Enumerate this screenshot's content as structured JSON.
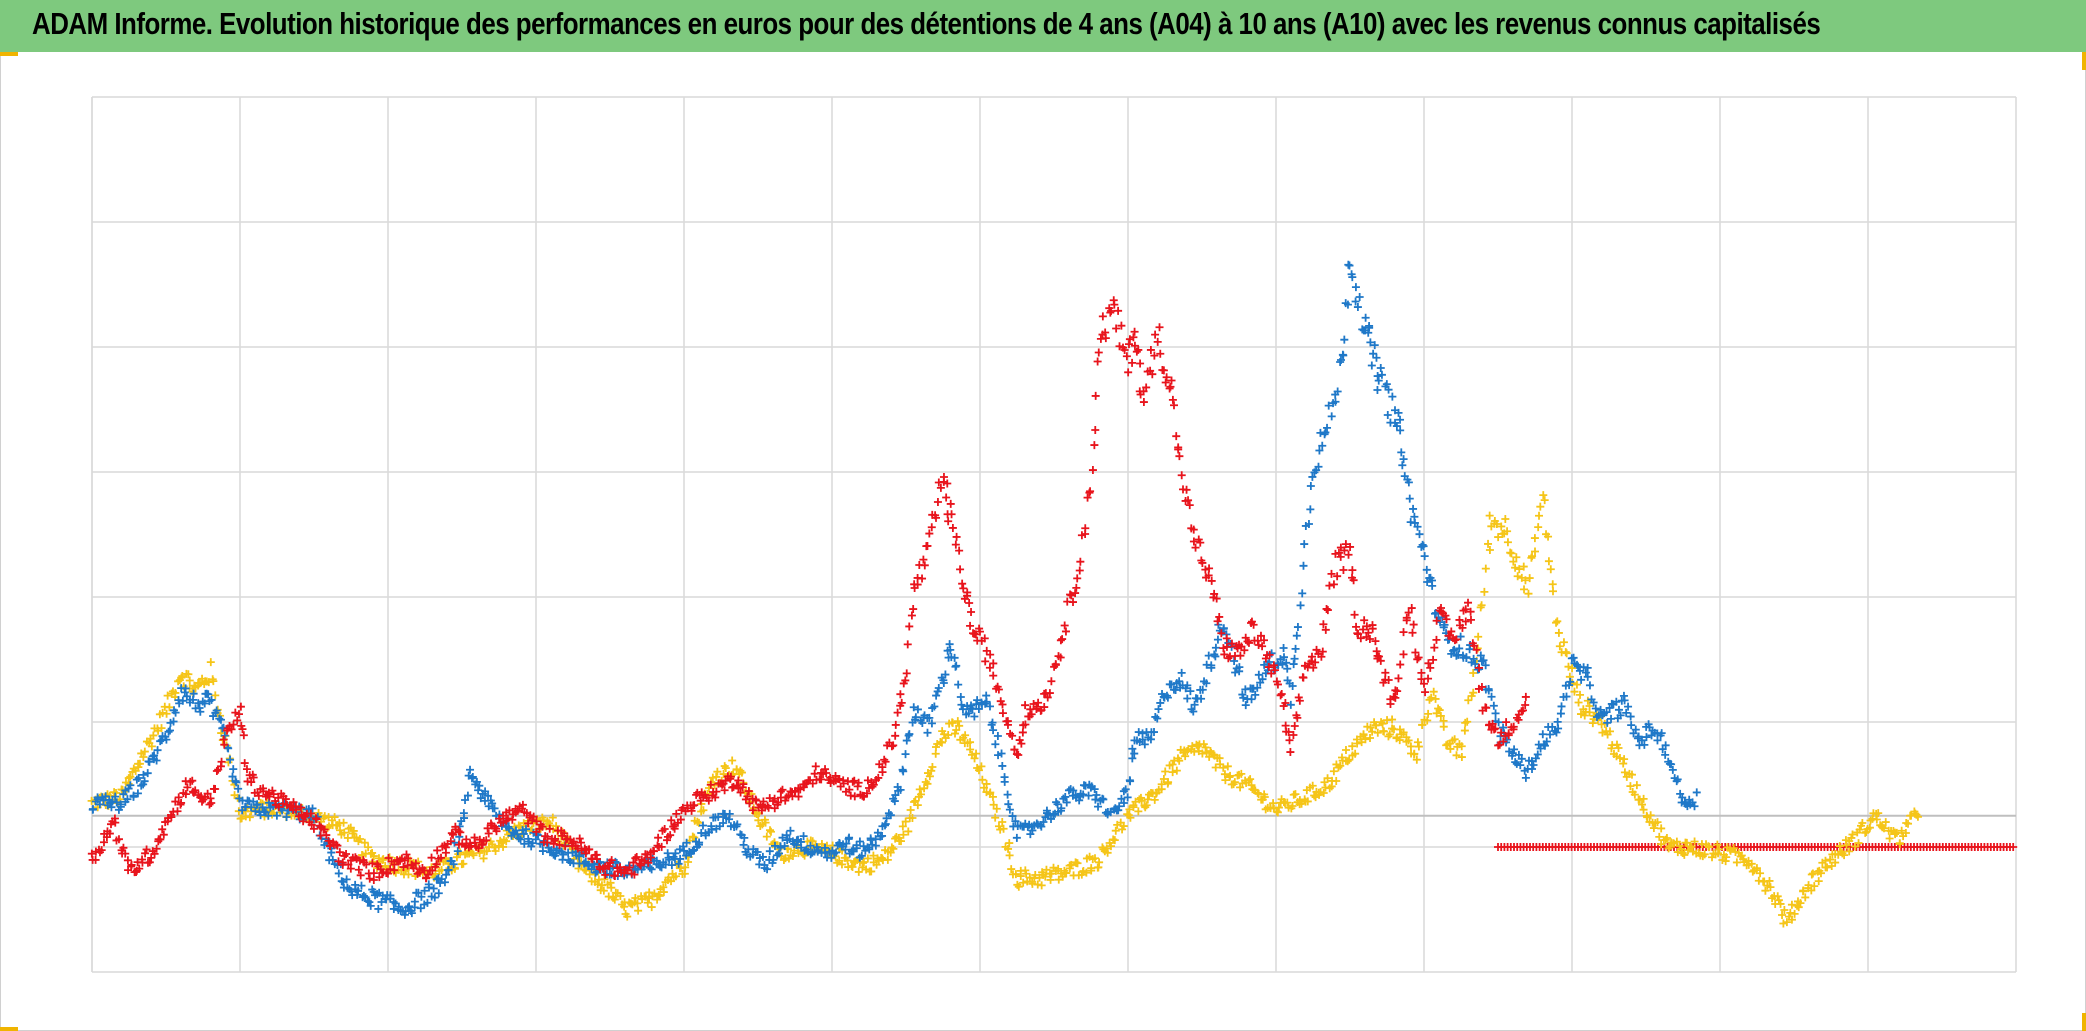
{
  "title": "ADAM Informe. Evolution historique des performances en euros pour des détentions de 4 ans (A04) à 10 ans (A10) avec les revenus connus capitalisés",
  "colors": {
    "title_background": "#7ec97e",
    "corner_accent": "#f0b400",
    "grid": "#d9d9d9",
    "baseline": "#bfbfbf"
  },
  "chart_data": {
    "type": "scatter",
    "marker": "plus",
    "grid": true,
    "x_gridlines": 13,
    "y_gridlines": 6,
    "xlim": [
      0,
      13
    ],
    "ylim": [
      -1.25,
      5.75
    ],
    "baseline_y": 0,
    "xlabel": "",
    "ylabel": "",
    "series": [
      {
        "name": "yellow",
        "color": "#f5c518",
        "points": [
          [
            0.0,
            0.1
          ],
          [
            0.2,
            0.15
          ],
          [
            0.35,
            0.5
          ],
          [
            0.5,
            0.85
          ],
          [
            0.6,
            1.15
          ],
          [
            0.7,
            1.0
          ],
          [
            0.8,
            1.15
          ],
          [
            0.9,
            0.6
          ],
          [
            1.0,
            0.0
          ],
          [
            1.1,
            0.05
          ],
          [
            1.3,
            0.05
          ],
          [
            1.5,
            0.0
          ],
          [
            1.7,
            -0.1
          ],
          [
            1.9,
            -0.35
          ],
          [
            2.1,
            -0.4
          ],
          [
            2.3,
            -0.45
          ],
          [
            2.5,
            -0.35
          ],
          [
            2.7,
            -0.25
          ],
          [
            2.9,
            -0.1
          ],
          [
            3.1,
            -0.05
          ],
          [
            3.3,
            -0.4
          ],
          [
            3.5,
            -0.6
          ],
          [
            3.6,
            -0.75
          ],
          [
            3.75,
            -0.7
          ],
          [
            3.9,
            -0.5
          ],
          [
            4.0,
            -0.4
          ],
          [
            4.1,
            0.0
          ],
          [
            4.2,
            0.3
          ],
          [
            4.35,
            0.4
          ],
          [
            4.5,
            0.0
          ],
          [
            4.65,
            -0.3
          ],
          [
            4.8,
            -0.25
          ],
          [
            5.0,
            -0.3
          ],
          [
            5.2,
            -0.4
          ],
          [
            5.35,
            -0.35
          ],
          [
            5.5,
            -0.1
          ],
          [
            5.65,
            0.35
          ],
          [
            5.75,
            0.65
          ],
          [
            5.85,
            0.7
          ],
          [
            5.95,
            0.5
          ],
          [
            6.05,
            0.2
          ],
          [
            6.15,
            -0.1
          ],
          [
            6.25,
            -0.5
          ],
          [
            6.4,
            -0.5
          ],
          [
            6.6,
            -0.45
          ],
          [
            6.8,
            -0.35
          ],
          [
            7.0,
            0.0
          ],
          [
            7.2,
            0.2
          ],
          [
            7.35,
            0.45
          ],
          [
            7.5,
            0.55
          ],
          [
            7.65,
            0.35
          ],
          [
            7.8,
            0.25
          ],
          [
            8.0,
            0.05
          ],
          [
            8.2,
            0.15
          ],
          [
            8.35,
            0.25
          ],
          [
            8.5,
            0.5
          ],
          [
            8.65,
            0.7
          ],
          [
            8.8,
            0.7
          ],
          [
            8.95,
            0.5
          ],
          [
            9.05,
            1.0
          ],
          [
            9.15,
            0.6
          ],
          [
            9.25,
            0.5
          ],
          [
            9.35,
            1.2
          ],
          [
            9.45,
            2.35
          ],
          [
            9.55,
            2.3
          ],
          [
            9.7,
            1.8
          ],
          [
            9.8,
            2.55
          ],
          [
            9.9,
            1.5
          ],
          [
            10.05,
            0.9
          ],
          [
            10.2,
            0.75
          ],
          [
            10.35,
            0.4
          ],
          [
            10.5,
            0.05
          ],
          [
            10.65,
            -0.25
          ],
          [
            10.8,
            -0.25
          ],
          [
            11.0,
            -0.3
          ],
          [
            11.2,
            -0.35
          ],
          [
            11.35,
            -0.6
          ],
          [
            11.45,
            -0.85
          ],
          [
            11.6,
            -0.55
          ],
          [
            11.75,
            -0.35
          ],
          [
            11.9,
            -0.2
          ],
          [
            12.05,
            0.0
          ],
          [
            12.2,
            -0.2
          ],
          [
            12.35,
            0.05
          ]
        ]
      },
      {
        "name": "blue",
        "color": "#1f78c8",
        "points": [
          [
            0.0,
            0.1
          ],
          [
            0.2,
            0.1
          ],
          [
            0.35,
            0.3
          ],
          [
            0.5,
            0.65
          ],
          [
            0.6,
            1.0
          ],
          [
            0.7,
            0.9
          ],
          [
            0.8,
            0.9
          ],
          [
            0.9,
            0.6
          ],
          [
            1.0,
            0.1
          ],
          [
            1.1,
            0.05
          ],
          [
            1.3,
            0.05
          ],
          [
            1.5,
            0.0
          ],
          [
            1.6,
            -0.3
          ],
          [
            1.75,
            -0.6
          ],
          [
            2.0,
            -0.7
          ],
          [
            2.1,
            -0.75
          ],
          [
            2.25,
            -0.65
          ],
          [
            2.4,
            -0.5
          ],
          [
            2.5,
            -0.1
          ],
          [
            2.55,
            0.35
          ],
          [
            2.65,
            0.15
          ],
          [
            2.8,
            -0.1
          ],
          [
            3.0,
            -0.2
          ],
          [
            3.2,
            -0.3
          ],
          [
            3.4,
            -0.4
          ],
          [
            3.6,
            -0.45
          ],
          [
            3.8,
            -0.4
          ],
          [
            4.0,
            -0.3
          ],
          [
            4.15,
            -0.1
          ],
          [
            4.3,
            0.0
          ],
          [
            4.45,
            -0.3
          ],
          [
            4.55,
            -0.4
          ],
          [
            4.7,
            -0.15
          ],
          [
            4.85,
            -0.25
          ],
          [
            5.0,
            -0.3
          ],
          [
            5.1,
            -0.2
          ],
          [
            5.15,
            -0.3
          ],
          [
            5.3,
            -0.2
          ],
          [
            5.45,
            0.2
          ],
          [
            5.55,
            0.85
          ],
          [
            5.65,
            0.7
          ],
          [
            5.75,
            1.1
          ],
          [
            5.8,
            1.4
          ],
          [
            5.9,
            0.8
          ],
          [
            6.05,
            0.9
          ],
          [
            6.15,
            0.4
          ],
          [
            6.25,
            -0.15
          ],
          [
            6.35,
            -0.1
          ],
          [
            6.5,
            0.05
          ],
          [
            6.6,
            0.15
          ],
          [
            6.75,
            0.2
          ],
          [
            6.9,
            0.0
          ],
          [
            7.0,
            0.2
          ],
          [
            7.05,
            0.6
          ],
          [
            7.15,
            0.6
          ],
          [
            7.25,
            1.0
          ],
          [
            7.35,
            1.1
          ],
          [
            7.45,
            0.85
          ],
          [
            7.6,
            1.4
          ],
          [
            7.65,
            1.55
          ],
          [
            7.8,
            0.9
          ],
          [
            7.95,
            1.2
          ],
          [
            8.05,
            1.3
          ],
          [
            8.1,
            0.95
          ],
          [
            8.15,
            1.6
          ],
          [
            8.25,
            2.8
          ],
          [
            8.35,
            3.1
          ],
          [
            8.45,
            3.65
          ],
          [
            8.5,
            4.5
          ],
          [
            8.6,
            3.9
          ],
          [
            8.65,
            3.7
          ],
          [
            8.7,
            3.5
          ],
          [
            8.8,
            3.2
          ],
          [
            8.85,
            3.0
          ],
          [
            8.9,
            2.5
          ],
          [
            9.0,
            2.1
          ],
          [
            9.05,
            1.8
          ],
          [
            9.15,
            1.4
          ],
          [
            9.25,
            1.35
          ],
          [
            9.4,
            1.2
          ],
          [
            9.5,
            0.7
          ],
          [
            9.6,
            0.5
          ],
          [
            9.7,
            0.35
          ],
          [
            9.8,
            0.6
          ],
          [
            9.9,
            0.7
          ],
          [
            10.0,
            1.2
          ],
          [
            10.1,
            1.1
          ],
          [
            10.2,
            0.75
          ],
          [
            10.35,
            0.9
          ],
          [
            10.45,
            0.6
          ],
          [
            10.55,
            0.7
          ],
          [
            10.65,
            0.5
          ],
          [
            10.75,
            0.1
          ],
          [
            10.85,
            0.15
          ]
        ]
      },
      {
        "name": "red",
        "color": "#e8141c",
        "points": [
          [
            0.0,
            -0.35
          ],
          [
            0.15,
            -0.05
          ],
          [
            0.25,
            -0.45
          ],
          [
            0.4,
            -0.3
          ],
          [
            0.55,
            0.05
          ],
          [
            0.65,
            0.25
          ],
          [
            0.8,
            0.1
          ],
          [
            0.9,
            0.6
          ],
          [
            1.0,
            0.85
          ],
          [
            1.05,
            0.3
          ],
          [
            1.15,
            0.2
          ],
          [
            1.3,
            0.1
          ],
          [
            1.5,
            -0.05
          ],
          [
            1.7,
            -0.35
          ],
          [
            1.9,
            -0.45
          ],
          [
            2.1,
            -0.35
          ],
          [
            2.25,
            -0.45
          ],
          [
            2.45,
            -0.15
          ],
          [
            2.6,
            -0.25
          ],
          [
            2.75,
            -0.05
          ],
          [
            2.9,
            0.05
          ],
          [
            3.05,
            -0.15
          ],
          [
            3.25,
            -0.2
          ],
          [
            3.45,
            -0.4
          ],
          [
            3.6,
            -0.45
          ],
          [
            3.75,
            -0.35
          ],
          [
            3.9,
            -0.1
          ],
          [
            4.05,
            0.1
          ],
          [
            4.2,
            0.2
          ],
          [
            4.35,
            0.3
          ],
          [
            4.5,
            0.05
          ],
          [
            4.65,
            0.15
          ],
          [
            4.8,
            0.2
          ],
          [
            4.9,
            0.35
          ],
          [
            5.05,
            0.25
          ],
          [
            5.2,
            0.2
          ],
          [
            5.3,
            0.3
          ],
          [
            5.4,
            0.55
          ],
          [
            5.5,
            1.1
          ],
          [
            5.55,
            1.8
          ],
          [
            5.65,
            2.1
          ],
          [
            5.75,
            2.7
          ],
          [
            5.8,
            2.4
          ],
          [
            5.9,
            1.8
          ],
          [
            5.95,
            1.5
          ],
          [
            6.05,
            1.3
          ],
          [
            6.15,
            0.9
          ],
          [
            6.25,
            0.5
          ],
          [
            6.3,
            0.8
          ],
          [
            6.45,
            0.95
          ],
          [
            6.55,
            1.4
          ],
          [
            6.65,
            1.9
          ],
          [
            6.75,
            2.6
          ],
          [
            6.8,
            3.8
          ],
          [
            6.9,
            4.05
          ],
          [
            7.0,
            3.6
          ],
          [
            7.05,
            3.9
          ],
          [
            7.1,
            3.3
          ],
          [
            7.2,
            3.85
          ],
          [
            7.3,
            3.4
          ],
          [
            7.35,
            2.8
          ],
          [
            7.45,
            2.2
          ],
          [
            7.55,
            1.9
          ],
          [
            7.65,
            1.35
          ],
          [
            7.75,
            1.3
          ],
          [
            7.85,
            1.5
          ],
          [
            7.95,
            1.25
          ],
          [
            8.05,
            0.9
          ],
          [
            8.1,
            0.5
          ],
          [
            8.2,
            1.2
          ],
          [
            8.3,
            1.3
          ],
          [
            8.4,
            2.0
          ],
          [
            8.5,
            2.1
          ],
          [
            8.55,
            1.5
          ],
          [
            8.65,
            1.5
          ],
          [
            8.7,
            1.2
          ],
          [
            8.8,
            0.9
          ],
          [
            8.9,
            1.7
          ],
          [
            9.0,
            1.0
          ],
          [
            9.1,
            1.6
          ],
          [
            9.2,
            1.4
          ],
          [
            9.3,
            1.7
          ],
          [
            9.4,
            0.9
          ],
          [
            9.5,
            0.6
          ],
          [
            9.6,
            0.75
          ],
          [
            9.7,
            0.95
          ]
        ]
      },
      {
        "name": "red-flat",
        "color": "#e8141c",
        "x_start": 9.5,
        "x_end": 13.0,
        "y": -0.25
      }
    ]
  }
}
